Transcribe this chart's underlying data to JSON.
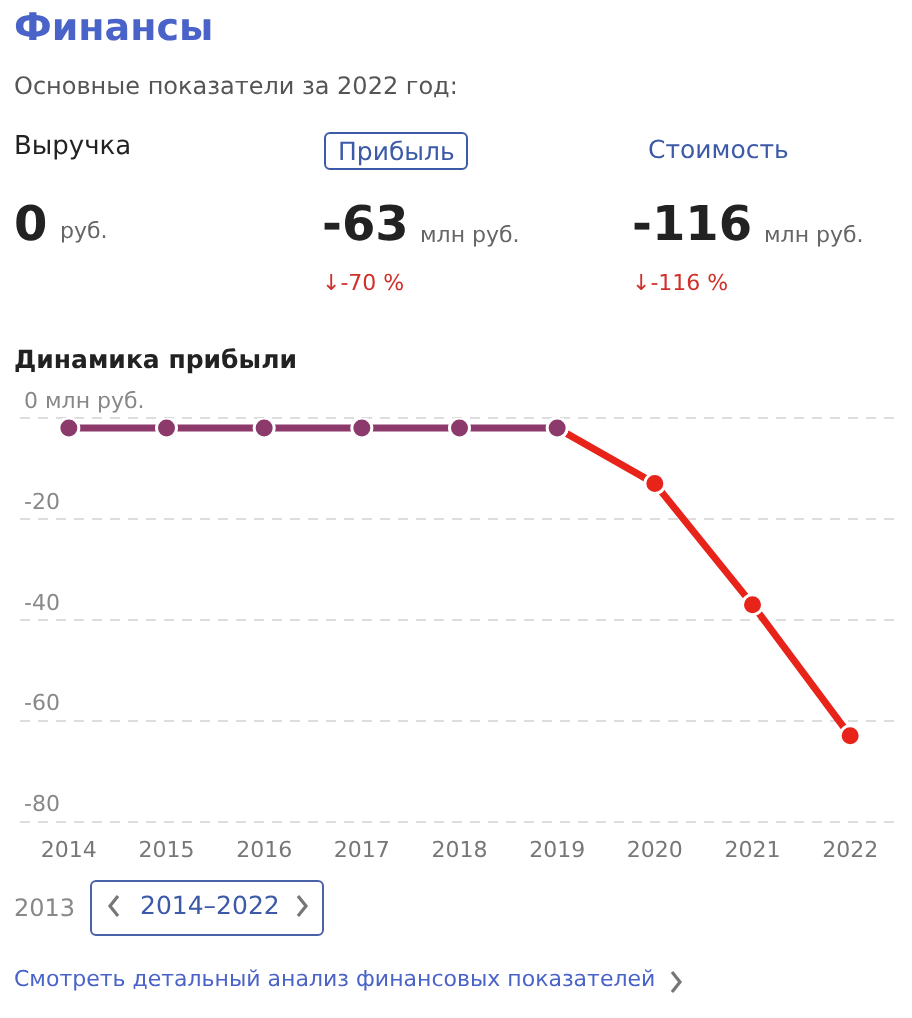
{
  "chart_data": [
    {
      "type": "other",
      "title": "Финансы",
      "subtitle": "Основные показатели за 2022 год:",
      "annotations": [
        "Выручка",
        "Прибыль",
        "Стоимость",
        "0",
        "руб.",
        "-63",
        "млн руб.",
        "-116",
        "млн руб.",
        "↓-70 %",
        "↓-116 %"
      ]
    },
    {
      "type": "line",
      "title": "Динамика прибыли",
      "categories": [
        "2014",
        "2015",
        "2016",
        "2017",
        "2018",
        "2019",
        "2020",
        "2021",
        "2022"
      ],
      "series": [
        {
          "color": "#8b3a6b",
          "values": [
            -2,
            -2,
            -2,
            -2,
            -2,
            -2,
            null,
            null,
            null
          ]
        },
        {
          "color": "#e8231a",
          "values": [
            null,
            null,
            null,
            null,
            null,
            -2,
            -13,
            -37,
            -63
          ]
        }
      ],
      "ylim": [
        -80,
        0
      ],
      "yticks": [
        {
          "value": 0,
          "label": "0 млн руб."
        },
        -20,
        -40,
        -60,
        -80
      ],
      "grid": "y",
      "legend": false,
      "marker": "circle",
      "line_style": "solid",
      "annotations": [
        "2013",
        "2014–2022",
        "Смотреть детальный анализ финансовых показателей"
      ]
    }
  ]
}
